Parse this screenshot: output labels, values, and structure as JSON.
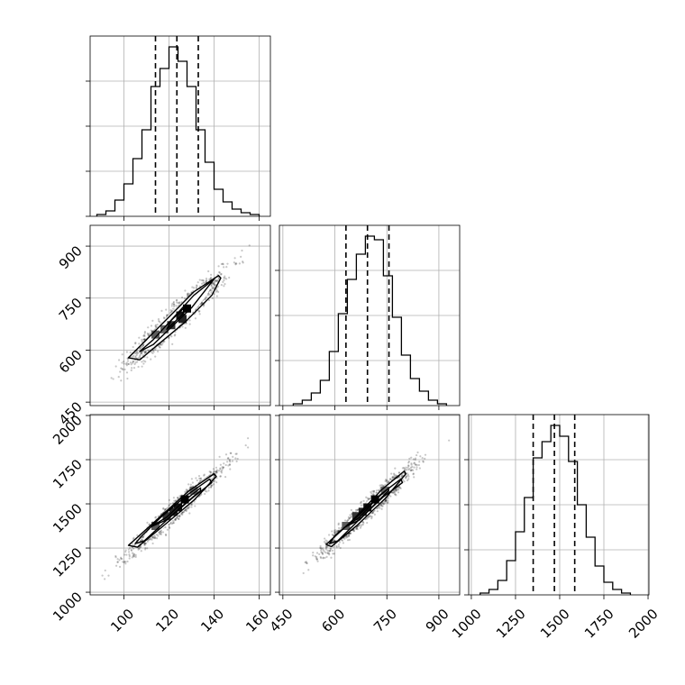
{
  "chart_data": {
    "type": "corner",
    "title": "",
    "parameters": [
      {
        "label": "",
        "range": [
          85,
          165
        ],
        "ticks": [
          100,
          120,
          140,
          160
        ],
        "tick_labels": [
          "100",
          "120",
          "140",
          "160"
        ],
        "quantiles": [
          114,
          123.5,
          133
        ],
        "histogram": {
          "bin_edges": [
            88,
            92,
            96,
            100,
            104,
            108,
            112,
            116,
            120,
            124,
            128,
            132,
            136,
            140,
            144,
            148,
            152,
            156,
            160
          ],
          "counts": [
            1,
            3,
            9,
            18,
            32,
            48,
            72,
            82,
            94,
            86,
            72,
            48,
            30,
            15,
            8,
            4,
            2,
            1
          ]
        }
      },
      {
        "label": "",
        "range": [
          440,
          960
        ],
        "ticks": [
          450,
          600,
          750,
          900
        ],
        "tick_labels": [
          "450",
          "600",
          "750",
          "900"
        ],
        "quantiles": [
          632,
          694,
          756
        ],
        "histogram": {
          "bin_edges": [
            480,
            506,
            532,
            558,
            584,
            610,
            636,
            662,
            688,
            714,
            740,
            766,
            792,
            818,
            844,
            870,
            896,
            922
          ],
          "counts": [
            1,
            3,
            7,
            14,
            30,
            51,
            70,
            84,
            94,
            92,
            72,
            49,
            28,
            15,
            8,
            3,
            1
          ]
        }
      },
      {
        "label": "",
        "range": [
          985,
          2005
        ],
        "ticks": [
          1000,
          1250,
          1500,
          1750,
          2000
        ],
        "tick_labels": [
          "1000",
          "1250",
          "1500",
          "1750",
          "2000"
        ],
        "quantiles": [
          1350,
          1470,
          1585
        ],
        "histogram": {
          "bin_edges": [
            1050,
            1100,
            1150,
            1200,
            1250,
            1300,
            1350,
            1400,
            1450,
            1500,
            1550,
            1600,
            1650,
            1700,
            1750,
            1800,
            1850,
            1900
          ],
          "counts": [
            1,
            3,
            8,
            19,
            35,
            54,
            76,
            85,
            94,
            88,
            74,
            50,
            32,
            16,
            7,
            3,
            1
          ]
        }
      }
    ],
    "hist_ylim": [
      0,
      100
    ],
    "hist_yticks": [
      0,
      25,
      50,
      75
    ],
    "scatter": [
      {
        "x_param": 0,
        "y_param": 1,
        "mean": [
          123.5,
          694
        ],
        "sd": [
          10,
          63
        ],
        "corr": 0.95,
        "contours": [
          {
            "level": "inner",
            "points": [
              [
                128,
                730
              ],
              [
                121,
                686
              ],
              [
                119,
                660
              ],
              [
                126,
                703
              ]
            ]
          },
          {
            "level": "outer",
            "points": [
              [
                140,
                805
              ],
              [
                131,
                758
              ],
              [
                113,
                630
              ],
              [
                107,
                596
              ],
              [
                113,
                616
              ],
              [
                130,
                722
              ]
            ]
          },
          {
            "level": "edge",
            "points": [
              [
                142,
                815
              ],
              [
                131,
                768
              ],
              [
                110,
                630
              ],
              [
                102,
                578
              ],
              [
                107,
                572
              ],
              [
                127,
                680
              ],
              [
                139,
                758
              ],
              [
                143,
                808
              ]
            ]
          }
        ],
        "density_cells": [
          [
            114,
            645
          ],
          [
            121,
            672
          ],
          [
            125,
            700
          ],
          [
            128,
            720
          ],
          [
            118,
            660
          ],
          [
            126,
            690
          ]
        ]
      },
      {
        "x_param": 0,
        "y_param": 2,
        "mean": [
          123.5,
          1470
        ],
        "sd": [
          10,
          118
        ],
        "corr": 0.97,
        "contours": [
          {
            "level": "inner",
            "points": [
              [
                134,
                1590
              ],
              [
                127,
                1520
              ],
              [
                119,
                1425
              ],
              [
                112,
                1370
              ],
              [
                119,
                1410
              ],
              [
                127,
                1500
              ],
              [
                134,
                1575
              ]
            ]
          },
          {
            "level": "outer",
            "points": [
              [
                138,
                1640
              ],
              [
                128,
                1550
              ],
              [
                116,
                1420
              ],
              [
                108,
                1320
              ],
              [
                105,
                1275
              ],
              [
                109,
                1290
              ],
              [
                120,
                1420
              ],
              [
                131,
                1540
              ],
              [
                139,
                1620
              ]
            ]
          },
          {
            "level": "edge",
            "points": [
              [
                140,
                1670
              ],
              [
                129,
                1575
              ],
              [
                112,
                1380
              ],
              [
                102,
                1265
              ],
              [
                106,
                1255
              ],
              [
                117,
                1370
              ],
              [
                131,
                1520
              ],
              [
                141,
                1655
              ]
            ]
          }
        ],
        "density_cells": [
          [
            114,
            1375
          ],
          [
            119,
            1430
          ],
          [
            124,
            1480
          ],
          [
            127,
            1525
          ],
          [
            131,
            1575
          ],
          [
            122,
            1455
          ]
        ]
      },
      {
        "x_param": 1,
        "y_param": 2,
        "mean": [
          694,
          1470
        ],
        "sd": [
          63,
          118
        ],
        "corr": 0.97,
        "contours": [
          {
            "level": "inner",
            "points": [
              [
                755,
                1590
              ],
              [
                716,
                1520
              ],
              [
                672,
                1425
              ],
              [
                631,
                1370
              ],
              [
                672,
                1410
              ],
              [
                716,
                1500
              ],
              [
                755,
                1575
              ]
            ]
          },
          {
            "level": "outer",
            "points": [
              [
                790,
                1640
              ],
              [
                730,
                1550
              ],
              [
                660,
                1420
              ],
              [
                600,
                1320
              ],
              [
                585,
                1275
              ],
              [
                608,
                1290
              ],
              [
                675,
                1420
              ],
              [
                740,
                1540
              ],
              [
                795,
                1620
              ]
            ]
          },
          {
            "level": "edge",
            "points": [
              [
                800,
                1685
              ],
              [
                735,
                1580
              ],
              [
                650,
                1405
              ],
              [
                575,
                1270
              ],
              [
                590,
                1258
              ],
              [
                665,
                1380
              ],
              [
                745,
                1530
              ],
              [
                805,
                1670
              ]
            ]
          }
        ],
        "density_cells": [
          [
            632,
            1375
          ],
          [
            662,
            1430
          ],
          [
            694,
            1480
          ],
          [
            716,
            1525
          ],
          [
            745,
            1575
          ],
          [
            680,
            1455
          ]
        ]
      }
    ]
  }
}
